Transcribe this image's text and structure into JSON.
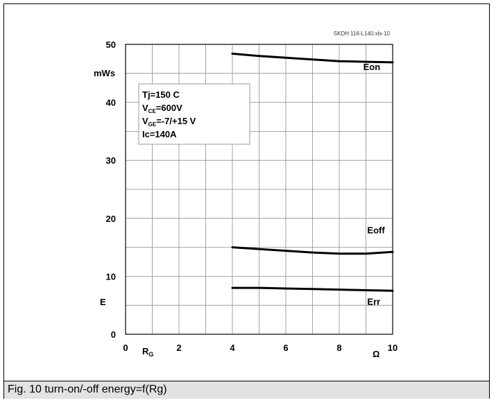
{
  "figure": {
    "caption": "Fig. 10 turn-on/-off energy=f(Rg)"
  },
  "chart_data": {
    "type": "line",
    "source_tag": "SKDH 116-L140.xls-10",
    "ylabel": "E",
    "yunit": "mWs",
    "xlabel": "R",
    "xlabel_sub": "G",
    "xunit": "Ω",
    "xlim": [
      0,
      10
    ],
    "ylim": [
      0,
      50
    ],
    "xticks": [
      0,
      2,
      4,
      6,
      8,
      10
    ],
    "yticks": [
      0,
      10,
      20,
      30,
      40,
      50
    ],
    "grid": true,
    "conditions": {
      "tj": "Tj=150 C",
      "vce_main": "V",
      "vce_sub": "CE",
      "vce_rest": "=600V",
      "vge_main": "V",
      "vge_sub": "GE",
      "vge_rest": "=-7/+15 V",
      "ic": "Ic=140A"
    },
    "series": [
      {
        "name": "Eon",
        "x": [
          4,
          5,
          6,
          7,
          8,
          9,
          10
        ],
        "y": [
          48.4,
          48.0,
          47.7,
          47.4,
          47.1,
          47.0,
          46.9
        ],
        "label_x": 8.9,
        "label_y": 45.6
      },
      {
        "name": "Eoff",
        "x": [
          4,
          5,
          6,
          7,
          8,
          9,
          10
        ],
        "y": [
          15.0,
          14.7,
          14.4,
          14.1,
          13.9,
          13.9,
          14.2
        ],
        "label_x": 9.05,
        "label_y": 17.4
      },
      {
        "name": "Err",
        "x": [
          4,
          5,
          6,
          7,
          8,
          9,
          10
        ],
        "y": [
          8.0,
          8.0,
          7.9,
          7.8,
          7.7,
          7.6,
          7.5
        ],
        "label_x": 9.05,
        "label_y": 5.1
      }
    ]
  }
}
